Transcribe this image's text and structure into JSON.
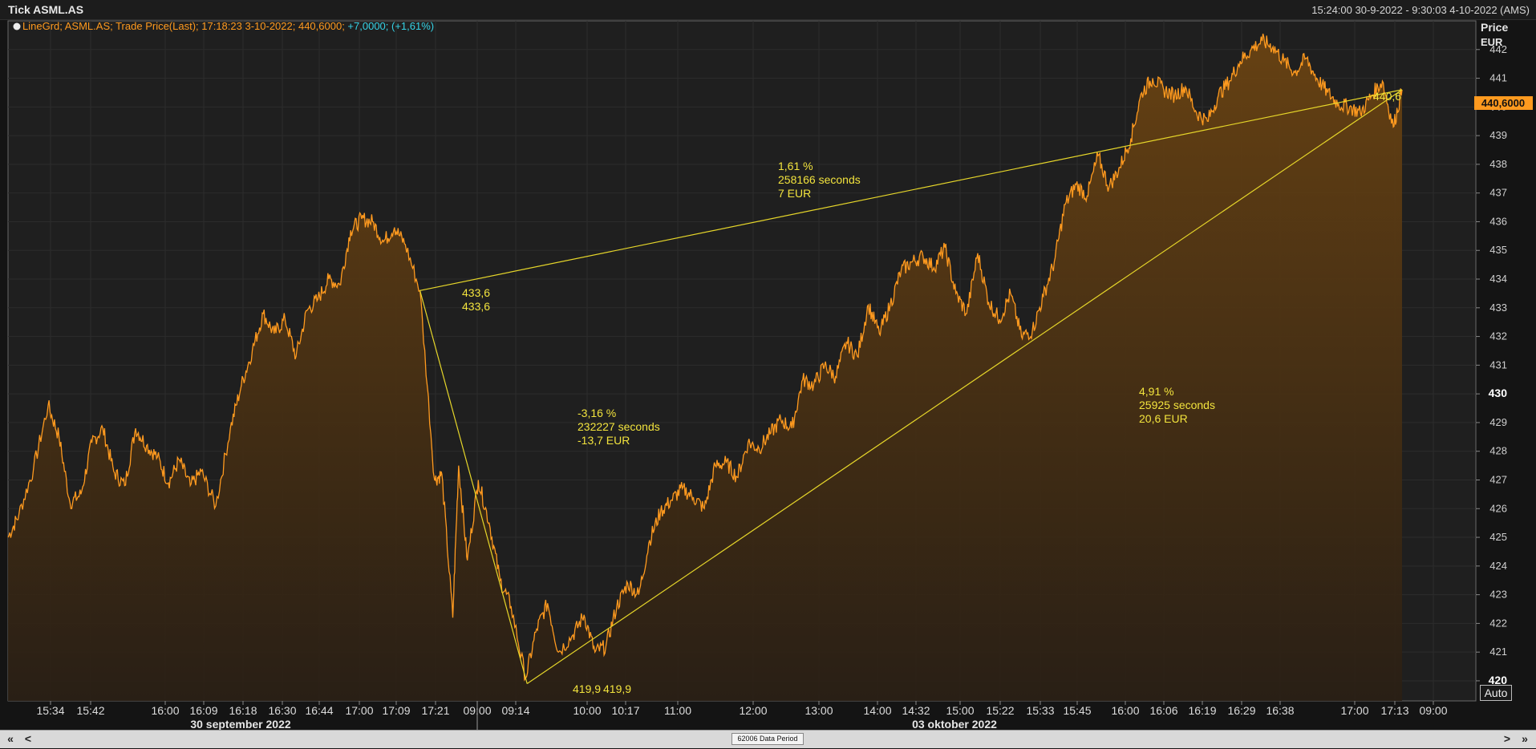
{
  "window": {
    "title": "Tick ASML.AS",
    "range": "15:24:00 30-9-2022 - 9:30:03 4-10-2022 (AMS)"
  },
  "legend": {
    "prefix": "LineGrd; ASML.AS; Trade Price(Last); 17:18:23 3-10-2022; 440,6000; ",
    "change": "+7,0000; (+1,61%)"
  },
  "yaxis": {
    "title": "Price",
    "unit": "EUR"
  },
  "last_price_label": "440,6000",
  "auto_label": "Auto",
  "scroll": {
    "first": "«",
    "prev": "<",
    "next": ">",
    "last": "»",
    "period_label": "62006 Data Period"
  },
  "chart_data": {
    "type": "area",
    "series": [
      {
        "name": "ASML.AS Trade Price(Last)"
      }
    ],
    "ylim": [
      419.3,
      443
    ],
    "y_ticks": [
      420,
      421,
      422,
      423,
      424,
      425,
      426,
      427,
      428,
      429,
      430,
      431,
      432,
      433,
      434,
      435,
      436,
      437,
      438,
      439,
      440,
      441,
      442
    ],
    "y_bold_ticks": [
      420,
      430,
      440
    ],
    "x_tick_labels": [
      "15:34",
      "15:42",
      "16:00",
      "16:09",
      "16:18",
      "16:30",
      "16:44",
      "17:00",
      "17:09",
      "17:21",
      "09:00",
      "09:14",
      "10:00",
      "10:17",
      "11:00",
      "12:00",
      "13:00",
      "14:00",
      "14:32",
      "15:00",
      "15:22",
      "15:33",
      "15:45",
      "16:00",
      "16:06",
      "16:19",
      "16:29",
      "16:38",
      "17:00",
      "17:13",
      "09:00"
    ],
    "date_labels": [
      "30 september 2022",
      "03 oktober 2022"
    ],
    "knots": [
      [
        0,
        425.0
      ],
      [
        1.5,
        425.8
      ],
      [
        3.5,
        427.4
      ],
      [
        5.5,
        429.6
      ],
      [
        7,
        428.5
      ],
      [
        8.5,
        426.2
      ],
      [
        10,
        426.5
      ],
      [
        11.5,
        428.3
      ],
      [
        13,
        428.8
      ],
      [
        14.5,
        427.3
      ],
      [
        16,
        426.8
      ],
      [
        17.5,
        428.8
      ],
      [
        19,
        428.2
      ],
      [
        20.5,
        427.8
      ],
      [
        22,
        426.9
      ],
      [
        23.5,
        427.7
      ],
      [
        25,
        426.8
      ],
      [
        26.5,
        427.3
      ],
      [
        28.5,
        426.1
      ],
      [
        30.5,
        428.8
      ],
      [
        32,
        430.3
      ],
      [
        33.5,
        431.5
      ],
      [
        35,
        432.8
      ],
      [
        36.5,
        432.1
      ],
      [
        38,
        432.6
      ],
      [
        39.5,
        431.3
      ],
      [
        41,
        432.9
      ],
      [
        42.5,
        433.3
      ],
      [
        44,
        434.0
      ],
      [
        45.5,
        433.8
      ],
      [
        47,
        435.7
      ],
      [
        48.5,
        436.1
      ],
      [
        50,
        436.0
      ],
      [
        51.5,
        435.3
      ],
      [
        53,
        435.8
      ],
      [
        54.5,
        435.2
      ],
      [
        56.5,
        433.6
      ],
      [
        58.5,
        427.0
      ],
      [
        59.5,
        427.2
      ],
      [
        61,
        422.2
      ],
      [
        61.8,
        427.5
      ],
      [
        63,
        424.2
      ],
      [
        64.5,
        427.0
      ],
      [
        66,
        425.5
      ],
      [
        67.5,
        423.5
      ],
      [
        69,
        422.6
      ],
      [
        71,
        420.1
      ],
      [
        72.5,
        421.8
      ],
      [
        74,
        422.7
      ],
      [
        75.5,
        421.0
      ],
      [
        77.5,
        421.6
      ],
      [
        79,
        422.3
      ],
      [
        80.5,
        421.0
      ],
      [
        82,
        421.2
      ],
      [
        83.5,
        422.6
      ],
      [
        85,
        423.4
      ],
      [
        86.5,
        423.0
      ],
      [
        88,
        424.9
      ],
      [
        89.5,
        425.9
      ],
      [
        91,
        426.3
      ],
      [
        92.5,
        426.7
      ],
      [
        94,
        426.4
      ],
      [
        95.5,
        426.0
      ],
      [
        97,
        427.5
      ],
      [
        98.5,
        427.6
      ],
      [
        100,
        427.1
      ],
      [
        101.5,
        428.3
      ],
      [
        103,
        428.1
      ],
      [
        104.5,
        428.6
      ],
      [
        106,
        429.1
      ],
      [
        107.5,
        428.8
      ],
      [
        109,
        430.5
      ],
      [
        110.5,
        430.3
      ],
      [
        112,
        431.0
      ],
      [
        113.5,
        430.6
      ],
      [
        115,
        431.8
      ],
      [
        116.5,
        431.3
      ],
      [
        118,
        433.1
      ],
      [
        119.5,
        432.1
      ],
      [
        121,
        433.1
      ],
      [
        122.5,
        434.3
      ],
      [
        124,
        434.6
      ],
      [
        125.5,
        434.8
      ],
      [
        127,
        434.4
      ],
      [
        128.5,
        435.1
      ],
      [
        130,
        433.5
      ],
      [
        131.5,
        432.8
      ],
      [
        133,
        434.9
      ],
      [
        134.5,
        433.2
      ],
      [
        136,
        432.6
      ],
      [
        137.5,
        433.5
      ],
      [
        139,
        432.0
      ],
      [
        140.5,
        432.2
      ],
      [
        142,
        433.4
      ],
      [
        143.5,
        434.6
      ],
      [
        145,
        436.6
      ],
      [
        146.5,
        437.3
      ],
      [
        148,
        436.9
      ],
      [
        149.5,
        438.3
      ],
      [
        151,
        437.2
      ],
      [
        152.5,
        437.9
      ],
      [
        154,
        438.9
      ],
      [
        155.5,
        440.5
      ],
      [
        157,
        441.0
      ],
      [
        158.5,
        440.6
      ],
      [
        160,
        440.4
      ],
      [
        161.5,
        440.7
      ],
      [
        163,
        439.8
      ],
      [
        164.5,
        439.5
      ],
      [
        166,
        440.4
      ],
      [
        167.5,
        440.9
      ],
      [
        169,
        441.6
      ],
      [
        170.5,
        442.0
      ],
      [
        172,
        442.3
      ],
      [
        173.5,
        442.1
      ],
      [
        175,
        441.6
      ],
      [
        176.5,
        441.2
      ],
      [
        178,
        441.7
      ],
      [
        179.5,
        441.0
      ],
      [
        181,
        440.5
      ],
      [
        182.5,
        440.1
      ],
      [
        184,
        440.0
      ],
      [
        185.5,
        439.8
      ],
      [
        187,
        440.4
      ],
      [
        188.5,
        440.9
      ],
      [
        190,
        439.3
      ],
      [
        191.2,
        440.6
      ]
    ],
    "annotations": [
      {
        "pct": "1,61 %",
        "secs": "258166 seconds",
        "eur": "7 EUR"
      },
      {
        "pct": "-3,16 %",
        "secs": "232227 seconds",
        "eur": "-13,7 EUR"
      },
      {
        "pct": "4,91 %",
        "secs": "25925 seconds",
        "eur": "20,6 EUR"
      }
    ],
    "point_labels": [
      "433,6",
      "433,6",
      "419,9",
      "419,9",
      "440,6"
    ],
    "colors": {
      "line": "#ff9a1f",
      "fill_top": "#6a4312",
      "annot": "#f2e33d",
      "tool_line": "#e6d62a",
      "grid": "#2c2c2c",
      "plot_bg": "#1f1f1f"
    }
  }
}
